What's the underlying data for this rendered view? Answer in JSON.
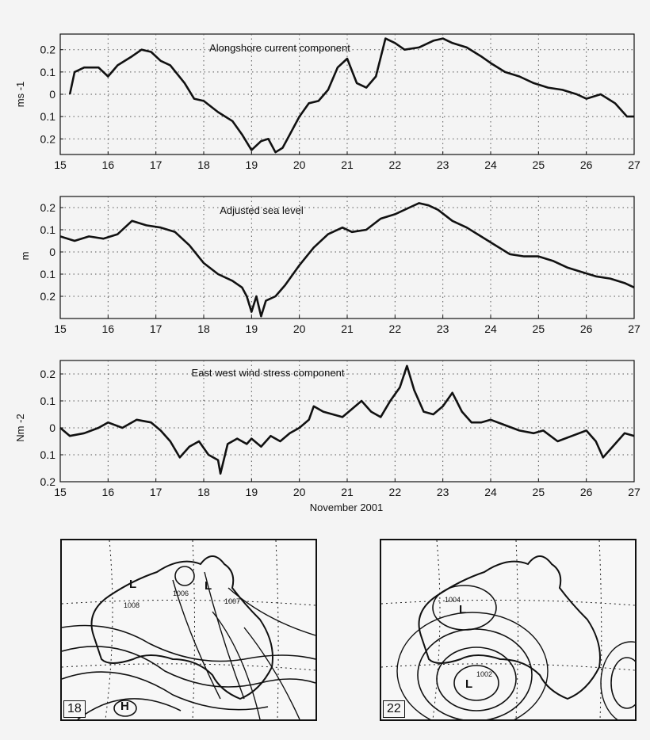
{
  "chart_data": [
    {
      "type": "line",
      "title": "Alongshore current component",
      "ylabel": "ms -1",
      "xlabel": "",
      "xlim": [
        15,
        27
      ],
      "ylim": [
        -0.27,
        0.27
      ],
      "grid": true,
      "x_ticks": [
        "15",
        "16",
        "17",
        "18",
        "19",
        "20",
        "21",
        "22",
        "23",
        "24",
        "25",
        "26",
        "27"
      ],
      "y_ticks": [
        {
          "value": 0.2,
          "label": "0.2"
        },
        {
          "value": 0.1,
          "label": "0.1"
        },
        {
          "value": 0,
          "label": "0"
        },
        {
          "value": -0.1,
          "label": "0.1"
        },
        {
          "value": -0.2,
          "label": "0.2"
        }
      ],
      "series": [
        {
          "x": [
            15.2,
            15.3,
            15.5,
            15.8,
            16.0,
            16.2,
            16.5,
            16.7,
            16.9,
            17.1,
            17.3,
            17.6,
            17.8,
            18.0,
            18.3,
            18.6,
            18.8,
            19.0,
            19.2,
            19.35,
            19.5,
            19.65,
            19.8,
            20.0,
            20.2,
            20.4,
            20.6,
            20.8,
            21.0,
            21.2,
            21.4,
            21.6,
            21.8,
            22.0,
            22.2,
            22.5,
            22.8,
            23.0,
            23.2,
            23.5,
            23.8,
            24.0,
            24.3,
            24.6,
            24.9,
            25.2,
            25.5,
            25.8,
            26.0,
            26.3,
            26.6,
            26.85,
            27.0
          ],
          "y": [
            0.0,
            0.1,
            0.12,
            0.12,
            0.08,
            0.13,
            0.17,
            0.2,
            0.19,
            0.15,
            0.13,
            0.05,
            -0.02,
            -0.03,
            -0.08,
            -0.12,
            -0.18,
            -0.25,
            -0.21,
            -0.2,
            -0.26,
            -0.24,
            -0.18,
            -0.1,
            -0.04,
            -0.03,
            0.02,
            0.12,
            0.16,
            0.05,
            0.03,
            0.08,
            0.25,
            0.23,
            0.2,
            0.21,
            0.24,
            0.25,
            0.23,
            0.21,
            0.17,
            0.14,
            0.1,
            0.08,
            0.05,
            0.03,
            0.02,
            0.0,
            -0.02,
            0.0,
            -0.04,
            -0.1,
            -0.1
          ]
        }
      ]
    },
    {
      "type": "line",
      "title": "Adjusted sea level",
      "ylabel": "m",
      "xlabel": "",
      "xlim": [
        15,
        27
      ],
      "ylim": [
        -0.3,
        0.25
      ],
      "grid": true,
      "x_ticks": [
        "15",
        "16",
        "17",
        "18",
        "19",
        "20",
        "21",
        "22",
        "23",
        "24",
        "25",
        "26",
        "27"
      ],
      "y_ticks": [
        {
          "value": 0.2,
          "label": "0.2"
        },
        {
          "value": 0.1,
          "label": "0.1"
        },
        {
          "value": 0,
          "label": "0"
        },
        {
          "value": -0.1,
          "label": "0.1"
        },
        {
          "value": -0.2,
          "label": "0.2"
        }
      ],
      "series": [
        {
          "x": [
            15.0,
            15.3,
            15.6,
            15.9,
            16.2,
            16.5,
            16.8,
            17.1,
            17.4,
            17.7,
            18.0,
            18.3,
            18.6,
            18.8,
            18.9,
            19.0,
            19.1,
            19.2,
            19.3,
            19.5,
            19.7,
            20.0,
            20.3,
            20.6,
            20.9,
            21.1,
            21.4,
            21.7,
            22.0,
            22.3,
            22.5,
            22.7,
            22.9,
            23.2,
            23.5,
            23.8,
            24.1,
            24.4,
            24.7,
            25.0,
            25.3,
            25.6,
            25.9,
            26.2,
            26.5,
            26.8,
            27.0
          ],
          "y": [
            0.07,
            0.05,
            0.07,
            0.06,
            0.08,
            0.14,
            0.12,
            0.11,
            0.09,
            0.03,
            -0.05,
            -0.1,
            -0.13,
            -0.16,
            -0.2,
            -0.27,
            -0.2,
            -0.29,
            -0.22,
            -0.2,
            -0.15,
            -0.06,
            0.02,
            0.08,
            0.11,
            0.09,
            0.1,
            0.15,
            0.17,
            0.2,
            0.22,
            0.21,
            0.19,
            0.14,
            0.11,
            0.07,
            0.03,
            -0.01,
            -0.02,
            -0.02,
            -0.04,
            -0.07,
            -0.09,
            -0.11,
            -0.12,
            -0.14,
            -0.16
          ]
        }
      ]
    },
    {
      "type": "line",
      "title": "East west wind stress component",
      "ylabel": "Nm -2",
      "xlabel": "November 2001",
      "xlim": [
        15,
        27
      ],
      "ylim": [
        -0.2,
        0.25
      ],
      "grid": true,
      "x_ticks": [
        "15",
        "16",
        "17",
        "18",
        "19",
        "20",
        "21",
        "22",
        "23",
        "24",
        "25",
        "26",
        "27"
      ],
      "y_ticks": [
        {
          "value": 0.2,
          "label": "0.2"
        },
        {
          "value": 0.1,
          "label": "0.1"
        },
        {
          "value": 0,
          "label": "0"
        },
        {
          "value": -0.1,
          "label": "0.1"
        },
        {
          "value": -0.2,
          "label": "0.2"
        }
      ],
      "series": [
        {
          "x": [
            15.0,
            15.2,
            15.5,
            15.8,
            16.0,
            16.3,
            16.6,
            16.9,
            17.1,
            17.3,
            17.5,
            17.7,
            17.9,
            18.1,
            18.3,
            18.35,
            18.5,
            18.7,
            18.9,
            19.0,
            19.2,
            19.4,
            19.6,
            19.8,
            20.0,
            20.2,
            20.3,
            20.5,
            20.7,
            20.9,
            21.1,
            21.3,
            21.5,
            21.7,
            21.9,
            22.1,
            22.25,
            22.4,
            22.6,
            22.8,
            23.0,
            23.2,
            23.4,
            23.6,
            23.8,
            24.0,
            24.3,
            24.6,
            24.9,
            25.1,
            25.4,
            25.7,
            26.0,
            26.2,
            26.35,
            26.6,
            26.8,
            27.0
          ],
          "y": [
            0.0,
            -0.03,
            -0.02,
            0.0,
            0.02,
            0.0,
            0.03,
            0.02,
            -0.01,
            -0.05,
            -0.11,
            -0.07,
            -0.05,
            -0.1,
            -0.12,
            -0.17,
            -0.06,
            -0.04,
            -0.06,
            -0.04,
            -0.07,
            -0.03,
            -0.05,
            -0.02,
            0.0,
            0.03,
            0.08,
            0.06,
            0.05,
            0.04,
            0.07,
            0.1,
            0.06,
            0.04,
            0.1,
            0.15,
            0.23,
            0.14,
            0.06,
            0.05,
            0.08,
            0.13,
            0.06,
            0.02,
            0.02,
            0.03,
            0.01,
            -0.01,
            -0.02,
            -0.01,
            -0.05,
            -0.03,
            -0.01,
            -0.05,
            -0.11,
            -0.06,
            -0.02,
            -0.03
          ]
        }
      ]
    }
  ],
  "maps": [
    {
      "label": "18",
      "pressure_labels": [
        "1008",
        "1006",
        "1007"
      ]
    },
    {
      "label": "22",
      "pressure_labels": [
        "1004",
        "1002"
      ]
    }
  ]
}
